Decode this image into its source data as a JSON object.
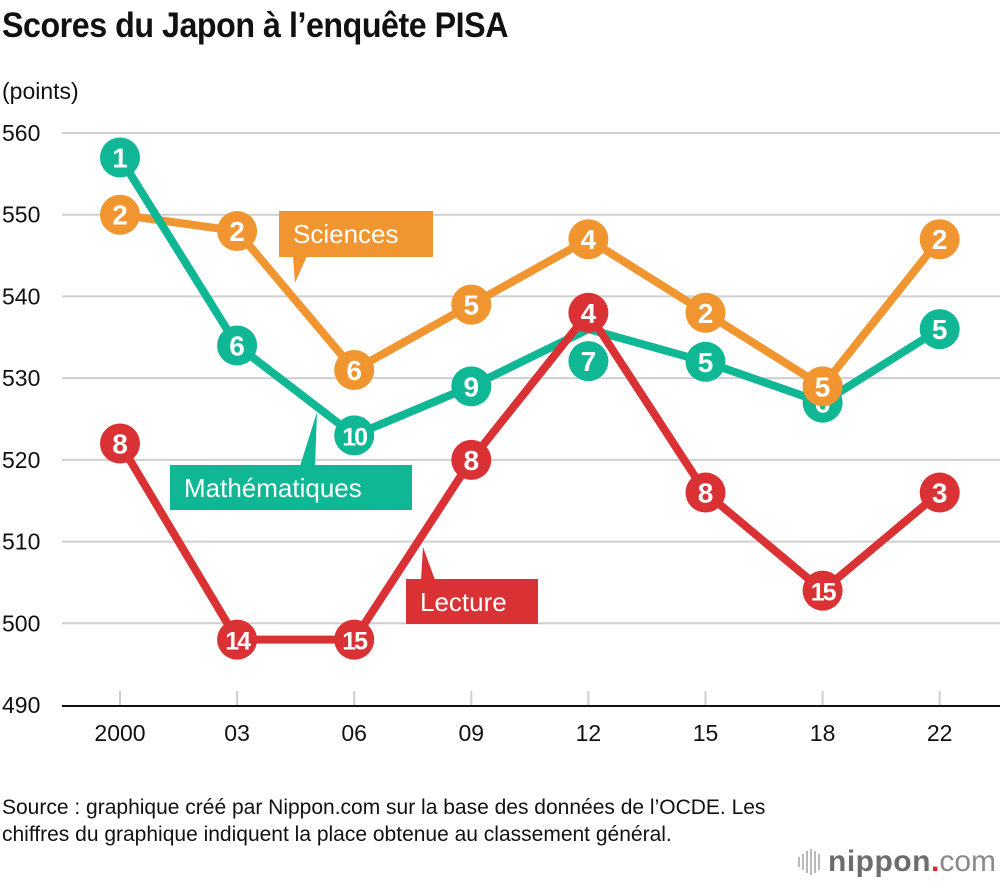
{
  "header": {
    "title": "Scores du Japon à l’enquête PISA",
    "unit": "(points)"
  },
  "chart_data": {
    "type": "line",
    "title": "Scores du Japon à l’enquête PISA",
    "ylabel": "(points)",
    "xlabel": "",
    "categories": [
      "2000",
      "03",
      "06",
      "09",
      "12",
      "15",
      "18",
      "22"
    ],
    "ylim": [
      490,
      560
    ],
    "yticks": [
      490,
      500,
      510,
      520,
      530,
      540,
      550,
      560
    ],
    "grid": true,
    "legend": "inline-callouts",
    "series": [
      {
        "name": "Sciences",
        "color": "#F0952F",
        "values": [
          550,
          548,
          531,
          539,
          547,
          538,
          529,
          547
        ],
        "ranks": [
          "2",
          "2",
          "6",
          "5",
          "4",
          "2",
          "5",
          "2"
        ]
      },
      {
        "name": "Mathématiques",
        "color": "#10B795",
        "values": [
          557,
          534,
          523,
          529,
          536,
          532,
          527,
          536
        ],
        "ranks": [
          "1",
          "6",
          "10",
          "9",
          "7",
          "5",
          "6",
          "5"
        ]
      },
      {
        "name": "Lecture",
        "color": "#D93134",
        "values": [
          522,
          498,
          498,
          520,
          538,
          516,
          504,
          516
        ],
        "ranks": [
          "8",
          "14",
          "15",
          "8",
          "4",
          "8",
          "15",
          "3"
        ]
      }
    ]
  },
  "footer": {
    "source": "Source : graphique créé par Nippon.com sur la base des données de l’OCDE. Les chiffres du graphique indiquent la place obtenue au classement général.",
    "logo_word": "nippon",
    "logo_dot": ".",
    "logo_com": "com"
  }
}
